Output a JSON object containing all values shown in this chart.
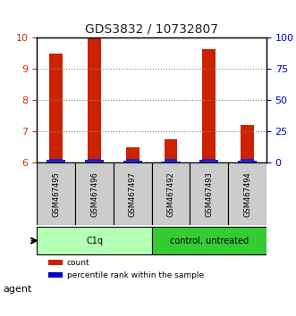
{
  "title": "GDS3832 / 10732807",
  "samples": [
    "GSM467495",
    "GSM467496",
    "GSM467497",
    "GSM467492",
    "GSM467493",
    "GSM467494"
  ],
  "red_values": [
    9.5,
    10.0,
    6.5,
    6.75,
    9.65,
    7.2
  ],
  "blue_values": [
    0.08,
    0.08,
    0.06,
    0.05,
    0.08,
    0.07
  ],
  "y_min": 6,
  "y_max": 10,
  "y_ticks": [
    6,
    7,
    8,
    9,
    10
  ],
  "y2_ticks": [
    0,
    25,
    50,
    75,
    100
  ],
  "groups": [
    {
      "label": "C1q",
      "indices": [
        0,
        1,
        2
      ],
      "color": "#b3ffb3"
    },
    {
      "label": "control, untreated",
      "indices": [
        3,
        4,
        5
      ],
      "color": "#33cc33"
    }
  ],
  "legend_items": [
    {
      "color": "#cc2200",
      "label": "count"
    },
    {
      "color": "#0000cc",
      "label": "percentile rank within the sample"
    }
  ],
  "bar_width": 0.5,
  "red_color": "#cc2200",
  "blue_color": "#2222cc",
  "agent_label": "agent",
  "title_color": "#333333",
  "left_tick_color": "#cc3300",
  "right_tick_color": "#0000cc",
  "grid_color": "#888888",
  "sample_box_color": "#cccccc"
}
